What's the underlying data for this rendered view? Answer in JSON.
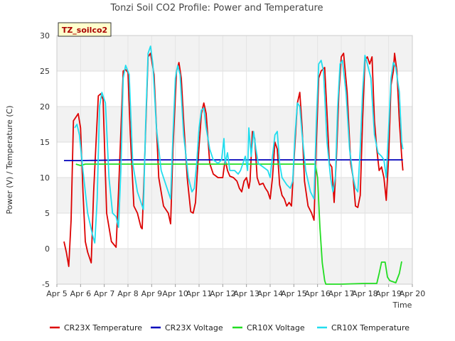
{
  "chart_data": {
    "type": "line",
    "title": "Tonzi Soil CO2 Profile: Power and Temperature",
    "xlabel": "Time",
    "ylabel": "Power (V) / Temperature (C)",
    "badge": "TZ_soilco2",
    "xlim": [
      5,
      20
    ],
    "ylim": [
      -5,
      30
    ],
    "x_ticks": [
      {
        "value": 5,
        "label": "Apr 5"
      },
      {
        "value": 6,
        "label": "Apr 6"
      },
      {
        "value": 7,
        "label": "Apr 7"
      },
      {
        "value": 8,
        "label": "Apr 8"
      },
      {
        "value": 9,
        "label": "Apr 9"
      },
      {
        "value": 10,
        "label": "Apr 10"
      },
      {
        "value": 11,
        "label": "Apr 11"
      },
      {
        "value": 12,
        "label": "Apr 12"
      },
      {
        "value": 13,
        "label": "Apr 13"
      },
      {
        "value": 14,
        "label": "Apr 14"
      },
      {
        "value": 15,
        "label": "Apr 15"
      },
      {
        "value": 16,
        "label": "Apr 16"
      },
      {
        "value": 17,
        "label": "Apr 17"
      },
      {
        "value": 18,
        "label": "Apr 18"
      },
      {
        "value": 19,
        "label": "Apr 19"
      },
      {
        "value": 20,
        "label": "Apr 20"
      }
    ],
    "y_ticks": [
      -5,
      0,
      5,
      10,
      15,
      20,
      25,
      30
    ],
    "grid": true,
    "banded_background": true,
    "legend_position": "bottom",
    "series": [
      {
        "name": "CR23X Temperature",
        "color": "#dd0000",
        "points": [
          [
            5.3,
            1.0
          ],
          [
            5.4,
            -0.5
          ],
          [
            5.5,
            -2.5
          ],
          [
            5.6,
            4.0
          ],
          [
            5.7,
            18.0
          ],
          [
            5.8,
            18.5
          ],
          [
            5.9,
            19.0
          ],
          [
            6.0,
            17.0
          ],
          [
            6.1,
            8.0
          ],
          [
            6.2,
            1.0
          ],
          [
            6.3,
            -0.5
          ],
          [
            6.45,
            -2.0
          ],
          [
            6.55,
            8.0
          ],
          [
            6.75,
            21.5
          ],
          [
            6.85,
            21.8
          ],
          [
            6.95,
            21.0
          ],
          [
            7.1,
            5.0
          ],
          [
            7.3,
            1.0
          ],
          [
            7.5,
            0.2
          ],
          [
            7.6,
            8.0
          ],
          [
            7.8,
            25.0
          ],
          [
            7.9,
            25.2
          ],
          [
            8.0,
            24.8
          ],
          [
            8.1,
            16.0
          ],
          [
            8.25,
            6.0
          ],
          [
            8.4,
            5.0
          ],
          [
            8.55,
            3.0
          ],
          [
            8.6,
            2.8
          ],
          [
            8.7,
            12.0
          ],
          [
            8.85,
            27.0
          ],
          [
            8.95,
            27.5
          ],
          [
            9.1,
            24.5
          ],
          [
            9.3,
            10.0
          ],
          [
            9.5,
            6.0
          ],
          [
            9.7,
            5.0
          ],
          [
            9.8,
            3.5
          ],
          [
            9.9,
            14.0
          ],
          [
            10.05,
            25.0
          ],
          [
            10.15,
            26.2
          ],
          [
            10.25,
            24.0
          ],
          [
            10.35,
            18.0
          ],
          [
            10.5,
            10.0
          ],
          [
            10.65,
            5.2
          ],
          [
            10.75,
            5.0
          ],
          [
            10.85,
            6.5
          ],
          [
            10.95,
            12.0
          ],
          [
            11.1,
            19.0
          ],
          [
            11.2,
            20.5
          ],
          [
            11.3,
            19.0
          ],
          [
            11.45,
            12.0
          ],
          [
            11.6,
            10.5
          ],
          [
            11.8,
            10.0
          ],
          [
            12.0,
            10.0
          ],
          [
            12.1,
            12.5
          ],
          [
            12.2,
            11.0
          ],
          [
            12.3,
            10.2
          ],
          [
            12.45,
            10.0
          ],
          [
            12.6,
            9.5
          ],
          [
            12.7,
            8.5
          ],
          [
            12.8,
            8.0
          ],
          [
            12.9,
            9.5
          ],
          [
            13.0,
            10.0
          ],
          [
            13.1,
            8.5
          ],
          [
            13.15,
            9.5
          ],
          [
            13.25,
            16.5
          ],
          [
            13.35,
            15.5
          ],
          [
            13.45,
            10.0
          ],
          [
            13.55,
            9.0
          ],
          [
            13.7,
            9.2
          ],
          [
            13.8,
            8.5
          ],
          [
            13.9,
            8.0
          ],
          [
            14.0,
            7.0
          ],
          [
            14.1,
            10.0
          ],
          [
            14.2,
            15.0
          ],
          [
            14.3,
            14.0
          ],
          [
            14.4,
            9.0
          ],
          [
            14.5,
            7.5
          ],
          [
            14.6,
            7.0
          ],
          [
            14.7,
            6.0
          ],
          [
            14.8,
            6.5
          ],
          [
            14.9,
            6.0
          ],
          [
            15.0,
            12.0
          ],
          [
            15.15,
            20.5
          ],
          [
            15.25,
            22.0
          ],
          [
            15.35,
            17.0
          ],
          [
            15.45,
            9.5
          ],
          [
            15.6,
            6.0
          ],
          [
            15.75,
            5.0
          ],
          [
            15.85,
            4.0
          ],
          [
            15.95,
            15.0
          ],
          [
            16.05,
            24.0
          ],
          [
            16.15,
            25.0
          ],
          [
            16.3,
            25.5
          ],
          [
            16.4,
            19.0
          ],
          [
            16.5,
            12.0
          ],
          [
            16.6,
            11.5
          ],
          [
            16.7,
            6.5
          ],
          [
            16.8,
            13.0
          ],
          [
            16.9,
            22.0
          ],
          [
            17.0,
            27.0
          ],
          [
            17.1,
            27.5
          ],
          [
            17.25,
            22.0
          ],
          [
            17.4,
            12.0
          ],
          [
            17.5,
            10.0
          ],
          [
            17.6,
            6.0
          ],
          [
            17.7,
            5.8
          ],
          [
            17.8,
            7.5
          ],
          [
            17.9,
            18.0
          ],
          [
            18.0,
            26.5
          ],
          [
            18.1,
            27.0
          ],
          [
            18.2,
            26.0
          ],
          [
            18.3,
            27.0
          ],
          [
            18.4,
            18.0
          ],
          [
            18.5,
            14.0
          ],
          [
            18.6,
            11.0
          ],
          [
            18.7,
            11.5
          ],
          [
            18.8,
            10.0
          ],
          [
            18.9,
            6.8
          ],
          [
            19.0,
            13.0
          ],
          [
            19.1,
            23.0
          ],
          [
            19.2,
            25.0
          ],
          [
            19.25,
            27.5
          ],
          [
            19.35,
            25.0
          ],
          [
            19.45,
            18.0
          ],
          [
            19.55,
            13.0
          ],
          [
            19.6,
            11.0
          ]
        ]
      },
      {
        "name": "CR23X Voltage",
        "color": "#0000bb",
        "points": [
          [
            5.3,
            12.4
          ],
          [
            6.0,
            12.4
          ],
          [
            8.0,
            12.5
          ],
          [
            10.0,
            12.5
          ],
          [
            12.0,
            12.5
          ],
          [
            14.0,
            12.5
          ],
          [
            16.0,
            12.5
          ],
          [
            18.0,
            12.5
          ],
          [
            19.6,
            12.5
          ]
        ]
      },
      {
        "name": "CR10X Voltage",
        "color": "#22dd22",
        "points": [
          [
            5.8,
            11.9
          ],
          [
            6.0,
            11.7
          ],
          [
            6.2,
            11.9
          ],
          [
            8.0,
            11.9
          ],
          [
            10.0,
            11.9
          ],
          [
            11.0,
            11.9
          ],
          [
            12.0,
            11.9
          ],
          [
            14.0,
            11.9
          ],
          [
            15.9,
            11.9
          ],
          [
            16.0,
            10.0
          ],
          [
            16.1,
            3.0
          ],
          [
            16.2,
            -2.0
          ],
          [
            16.3,
            -4.5
          ],
          [
            16.35,
            -5.0
          ],
          [
            17.0,
            -5.0
          ],
          [
            18.0,
            -4.9
          ],
          [
            18.5,
            -4.9
          ],
          [
            18.6,
            -3.5
          ],
          [
            18.7,
            -1.9
          ],
          [
            18.85,
            -1.9
          ],
          [
            18.95,
            -4.0
          ],
          [
            19.05,
            -4.5
          ],
          [
            19.3,
            -4.8
          ],
          [
            19.45,
            -3.5
          ],
          [
            19.55,
            -1.8
          ]
        ]
      },
      {
        "name": "CR10X Temperature",
        "color": "#22ddee",
        "points": [
          [
            5.75,
            17.0
          ],
          [
            5.85,
            17.5
          ],
          [
            5.95,
            16.0
          ],
          [
            6.1,
            11.0
          ],
          [
            6.3,
            5.0
          ],
          [
            6.5,
            2.0
          ],
          [
            6.6,
            0.8
          ],
          [
            6.7,
            7.0
          ],
          [
            6.8,
            20.0
          ],
          [
            6.9,
            22.0
          ],
          [
            7.05,
            20.5
          ],
          [
            7.2,
            10.0
          ],
          [
            7.35,
            5.0
          ],
          [
            7.5,
            4.5
          ],
          [
            7.6,
            3.0
          ],
          [
            7.7,
            11.0
          ],
          [
            7.8,
            24.0
          ],
          [
            7.9,
            25.8
          ],
          [
            8.05,
            24.5
          ],
          [
            8.2,
            12.0
          ],
          [
            8.4,
            8.0
          ],
          [
            8.55,
            6.5
          ],
          [
            8.65,
            5.5
          ],
          [
            8.75,
            18.0
          ],
          [
            8.85,
            27.5
          ],
          [
            8.95,
            28.5
          ],
          [
            9.05,
            26.0
          ],
          [
            9.2,
            17.0
          ],
          [
            9.4,
            11.0
          ],
          [
            9.6,
            9.0
          ],
          [
            9.8,
            7.0
          ],
          [
            9.9,
            16.0
          ],
          [
            10.0,
            24.0
          ],
          [
            10.1,
            25.8
          ],
          [
            10.2,
            24.5
          ],
          [
            10.35,
            16.0
          ],
          [
            10.55,
            10.0
          ],
          [
            10.7,
            8.0
          ],
          [
            10.8,
            8.5
          ],
          [
            10.9,
            12.0
          ],
          [
            11.0,
            17.0
          ],
          [
            11.1,
            19.5
          ],
          [
            11.2,
            19.8
          ],
          [
            11.3,
            17.0
          ],
          [
            11.45,
            14.0
          ],
          [
            11.6,
            12.5
          ],
          [
            11.8,
            12.0
          ],
          [
            11.95,
            12.5
          ],
          [
            12.05,
            15.5
          ],
          [
            12.1,
            12.0
          ],
          [
            12.2,
            13.5
          ],
          [
            12.3,
            11.0
          ],
          [
            12.5,
            11.0
          ],
          [
            12.65,
            10.5
          ],
          [
            12.75,
            11.0
          ],
          [
            12.85,
            12.0
          ],
          [
            12.95,
            13.0
          ],
          [
            13.05,
            11.0
          ],
          [
            13.1,
            17.0
          ],
          [
            13.2,
            13.0
          ],
          [
            13.3,
            16.5
          ],
          [
            13.4,
            14.0
          ],
          [
            13.5,
            12.0
          ],
          [
            13.7,
            11.5
          ],
          [
            13.9,
            11.0
          ],
          [
            14.0,
            10.0
          ],
          [
            14.1,
            13.0
          ],
          [
            14.2,
            16.0
          ],
          [
            14.3,
            16.5
          ],
          [
            14.4,
            12.0
          ],
          [
            14.5,
            10.0
          ],
          [
            14.7,
            9.0
          ],
          [
            14.85,
            8.5
          ],
          [
            14.95,
            9.5
          ],
          [
            15.05,
            16.0
          ],
          [
            15.15,
            20.5
          ],
          [
            15.25,
            20.0
          ],
          [
            15.35,
            16.0
          ],
          [
            15.5,
            11.0
          ],
          [
            15.7,
            8.0
          ],
          [
            15.85,
            7.0
          ],
          [
            15.95,
            18.0
          ],
          [
            16.05,
            26.0
          ],
          [
            16.15,
            26.5
          ],
          [
            16.25,
            25.0
          ],
          [
            16.4,
            15.0
          ],
          [
            16.55,
            10.0
          ],
          [
            16.65,
            8.0
          ],
          [
            16.75,
            10.0
          ],
          [
            16.85,
            20.0
          ],
          [
            16.95,
            26.0
          ],
          [
            17.05,
            26.5
          ],
          [
            17.2,
            22.0
          ],
          [
            17.35,
            14.0
          ],
          [
            17.5,
            10.0
          ],
          [
            17.6,
            8.5
          ],
          [
            17.7,
            8.0
          ],
          [
            17.8,
            14.0
          ],
          [
            17.9,
            22.0
          ],
          [
            18.0,
            27.2
          ],
          [
            18.1,
            26.0
          ],
          [
            18.25,
            24.0
          ],
          [
            18.4,
            16.0
          ],
          [
            18.55,
            13.5
          ],
          [
            18.7,
            13.0
          ],
          [
            18.8,
            12.5
          ],
          [
            18.9,
            10.0
          ],
          [
            19.0,
            17.0
          ],
          [
            19.1,
            24.0
          ],
          [
            19.2,
            26.2
          ],
          [
            19.3,
            25.5
          ],
          [
            19.45,
            22.0
          ],
          [
            19.55,
            15.0
          ],
          [
            19.6,
            14.0
          ]
        ]
      }
    ]
  }
}
